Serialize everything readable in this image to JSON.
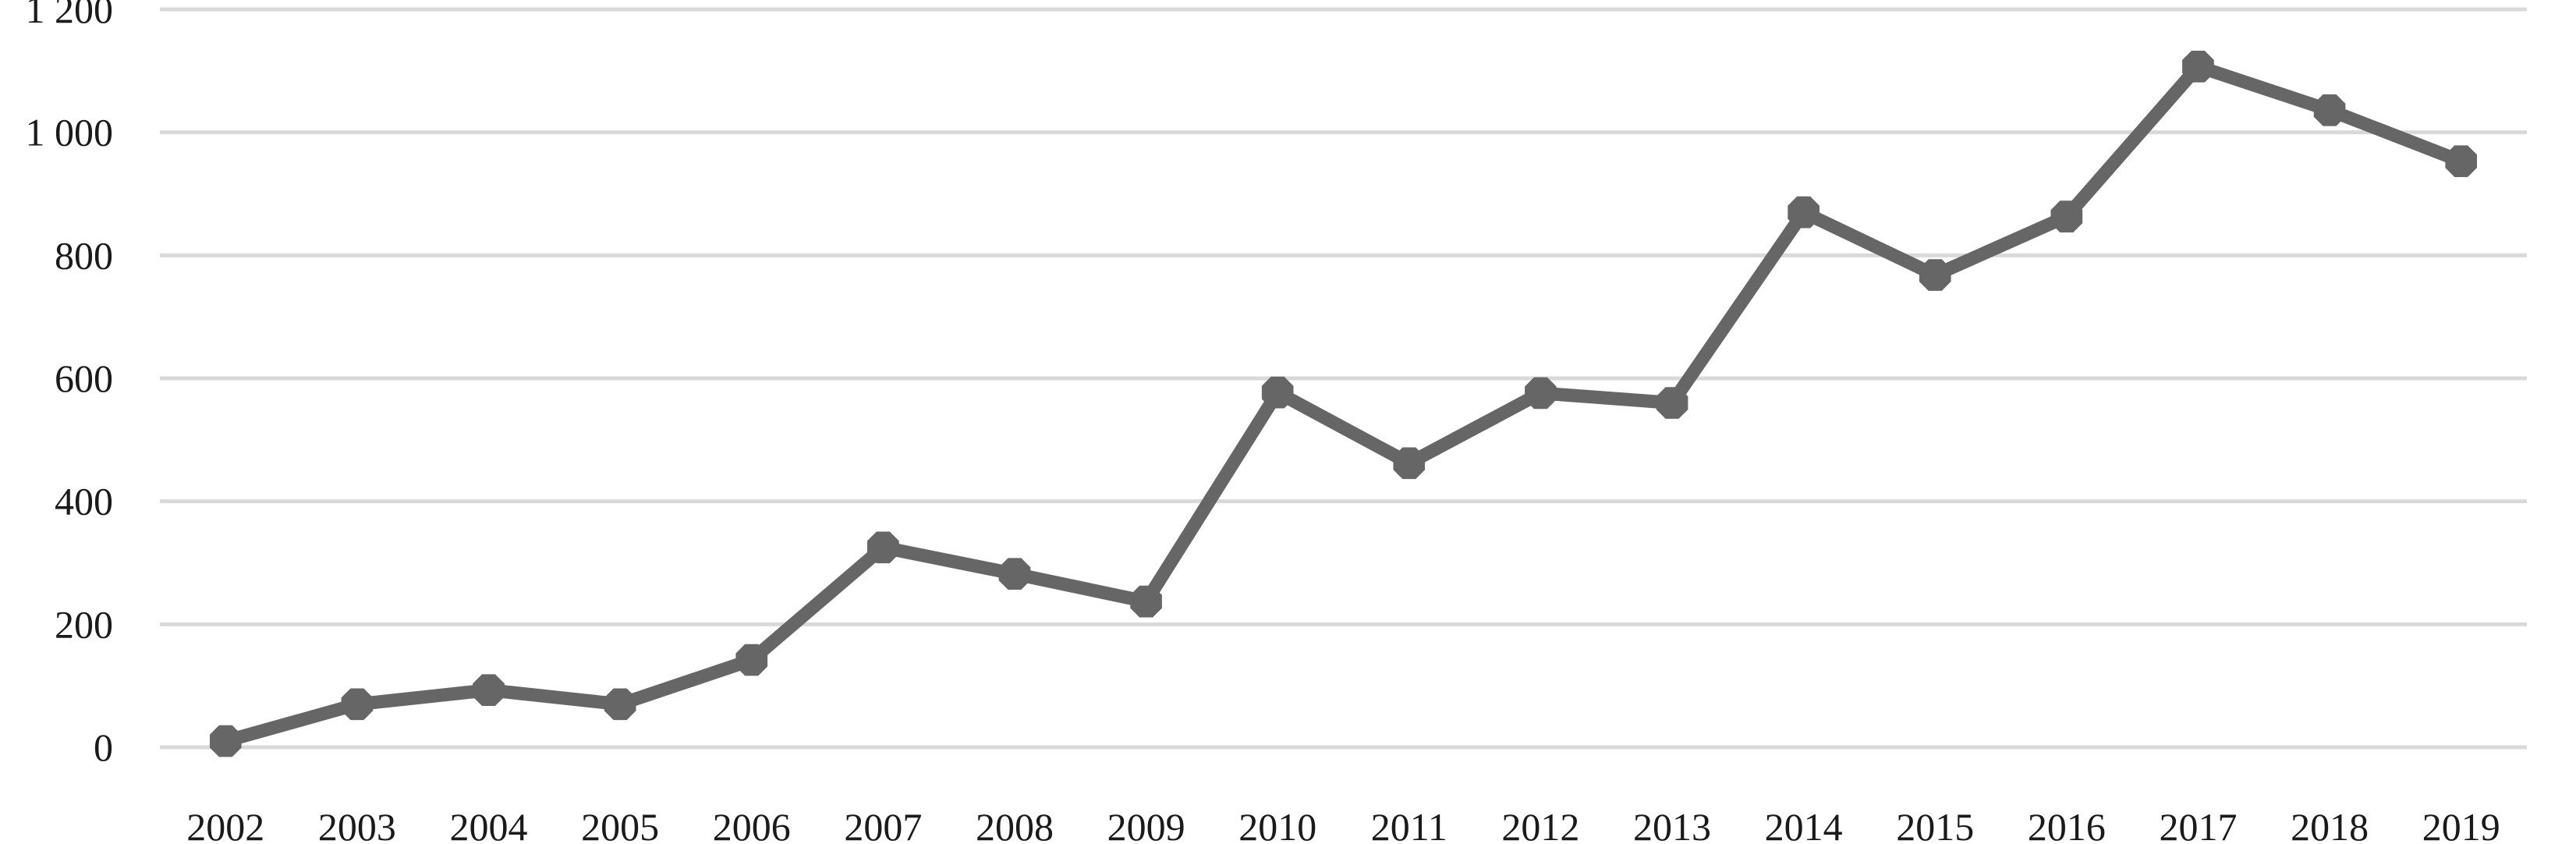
{
  "chart_data": {
    "type": "line",
    "title": "",
    "xlabel": "",
    "ylabel": "",
    "categories": [
      "2002",
      "2003",
      "2004",
      "2005",
      "2006",
      "2007",
      "2008",
      "2009",
      "2010",
      "2011",
      "2012",
      "2013",
      "2014",
      "2015",
      "2016",
      "2017",
      "2018",
      "2019"
    ],
    "series": [
      {
        "values": [
          10,
          70,
          93,
          70,
          142,
          325,
          282,
          237,
          577,
          462,
          576,
          560,
          870,
          768,
          863,
          1107,
          1036,
          953
        ],
        "color": "#666666"
      }
    ],
    "ylim": [
      0,
      1200
    ],
    "yticks": [
      0,
      200,
      400,
      600,
      800,
      1000,
      1200
    ],
    "ytick_labels": [
      "0",
      "200",
      "400",
      "600",
      "800",
      "1 000",
      "1 200"
    ],
    "grid": true,
    "gridline_color": "#d9d9d9",
    "legend": "none"
  }
}
